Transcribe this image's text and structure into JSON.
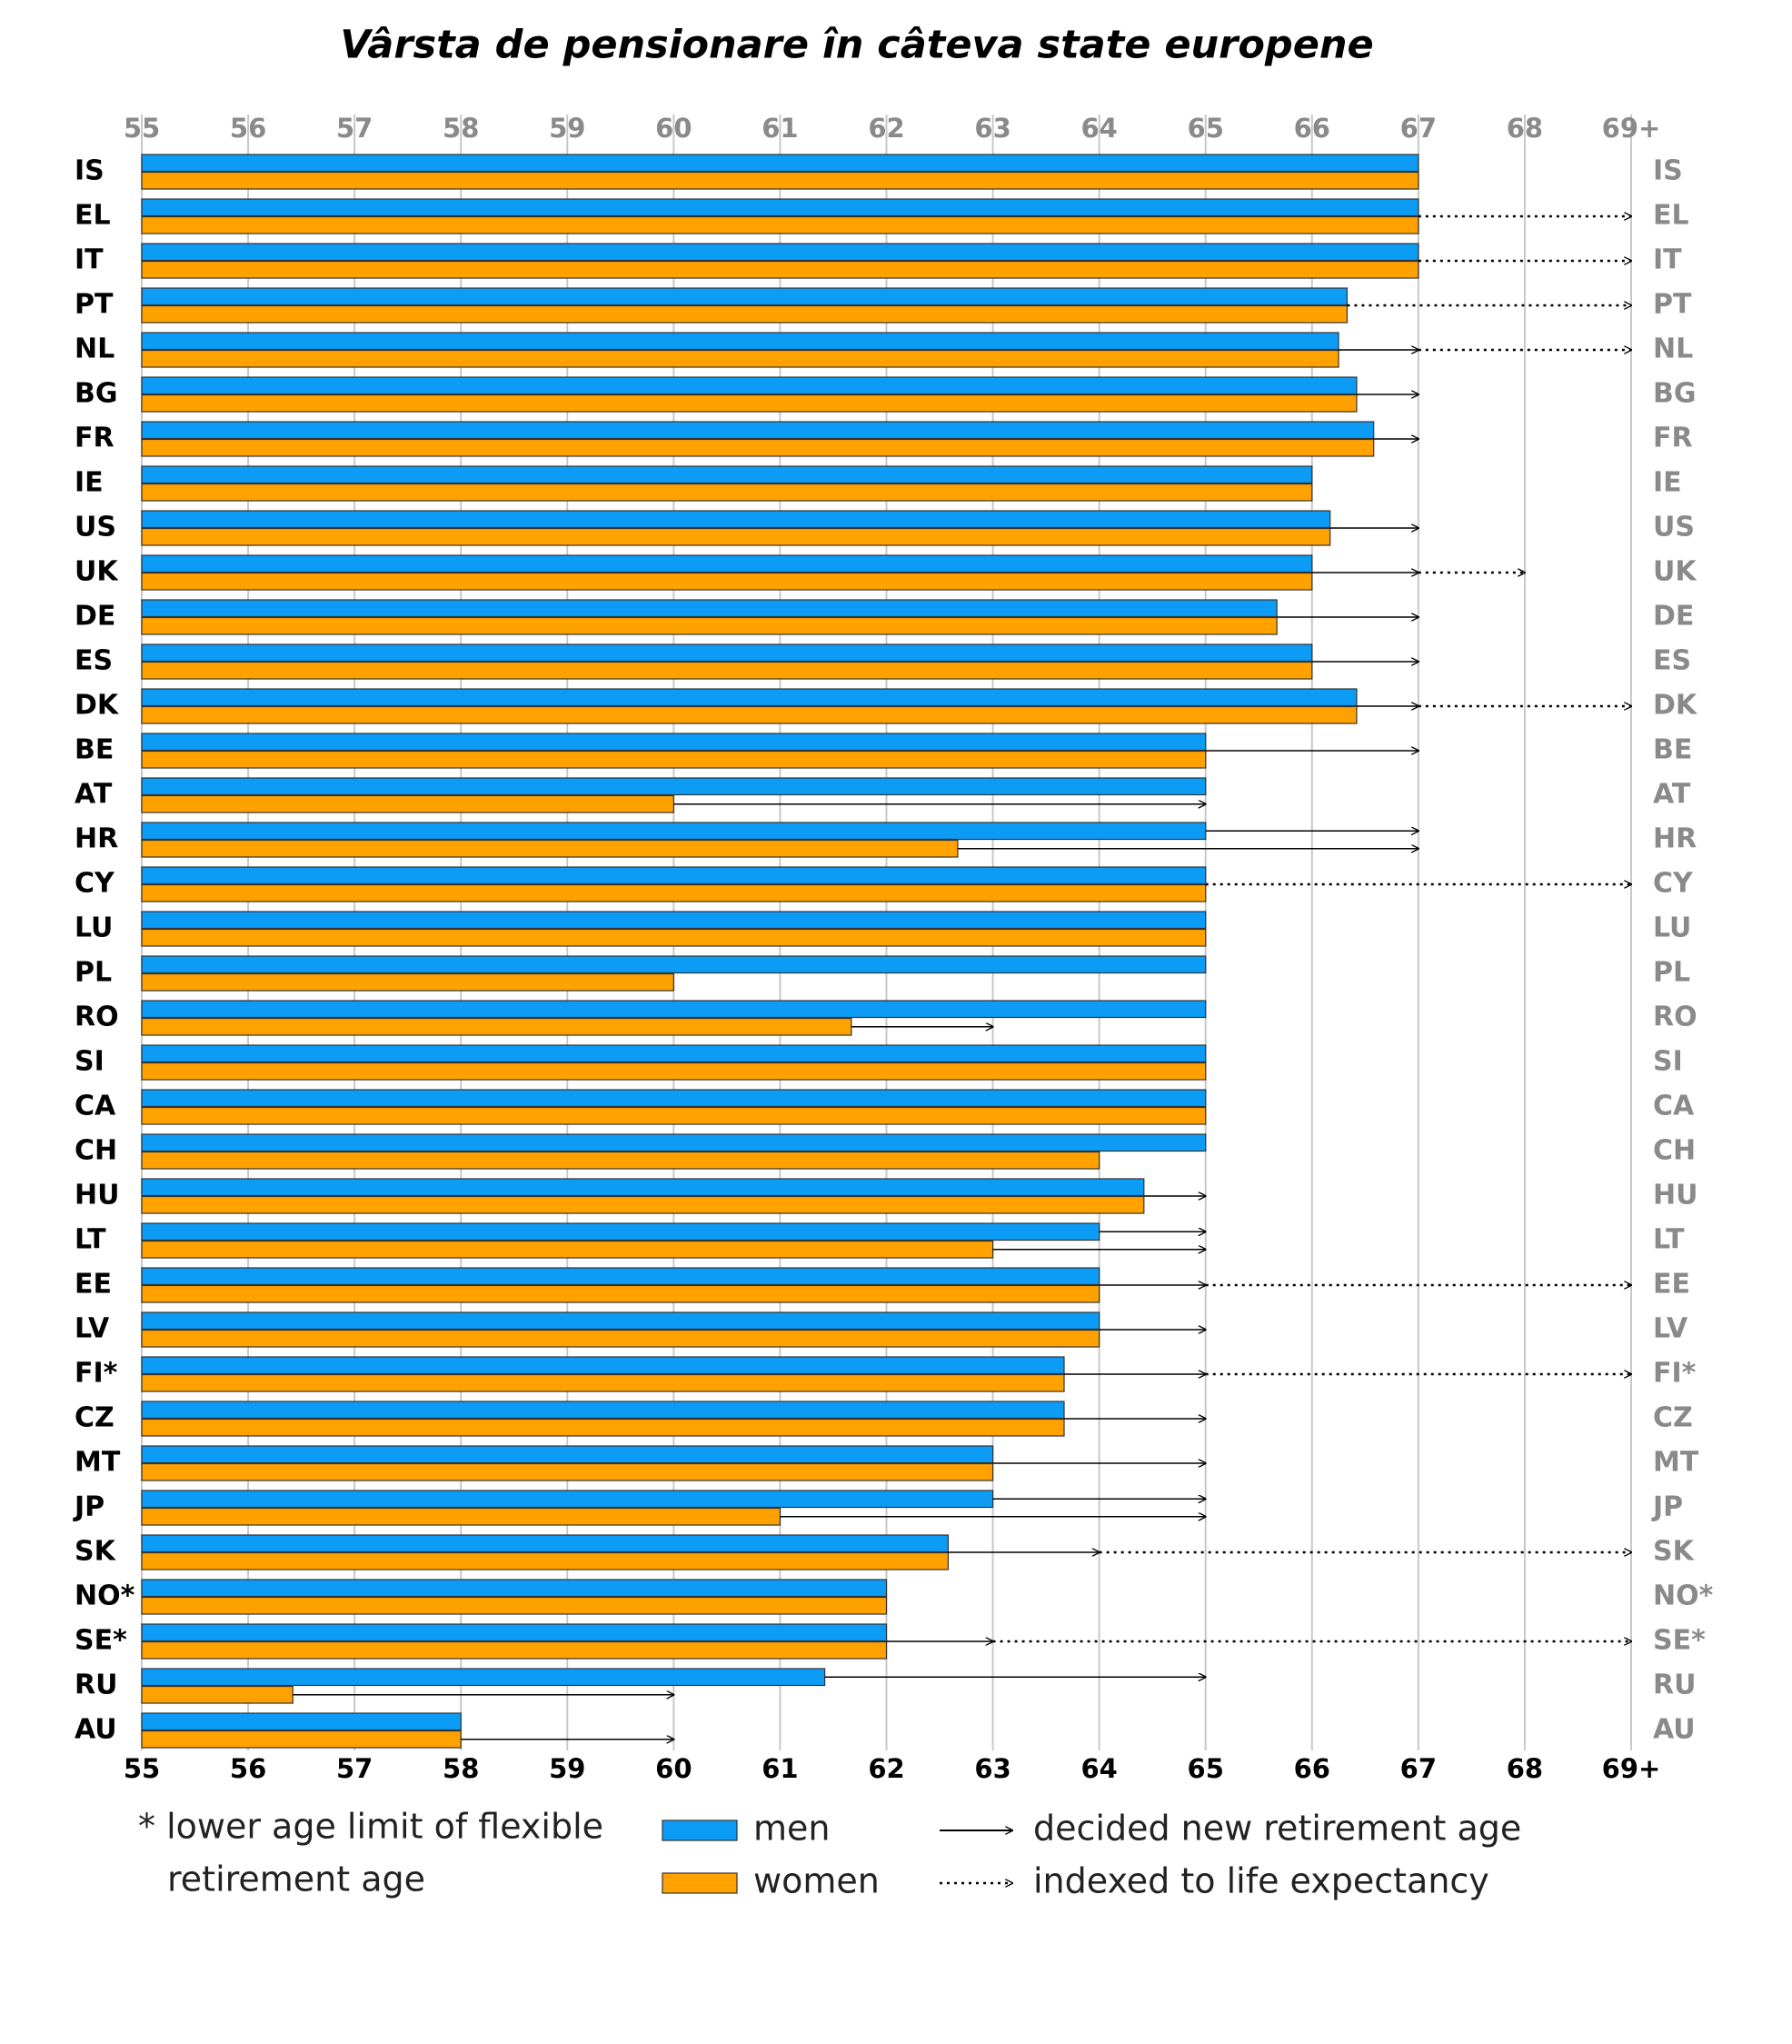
{
  "chart_data": {
    "type": "grouped-hbar",
    "title": "Vârsta de pensionare în câteva state europene",
    "categories": [
      "IS",
      "EL",
      "IT",
      "PT",
      "NL",
      "BG",
      "FR",
      "IE",
      "US",
      "UK",
      "DE",
      "ES",
      "DK",
      "BE",
      "AT",
      "HR",
      "CY",
      "LU",
      "PL",
      "RO",
      "SI",
      "CA",
      "CH",
      "HU",
      "LT",
      "EE",
      "LV",
      "FI*",
      "CZ",
      "MT",
      "JP",
      "SK",
      "NO*",
      "SE*",
      "RU",
      "AU"
    ],
    "series": [
      {
        "name": "men",
        "color": "#0d9cf5",
        "values": [
          67,
          67,
          67,
          66.33,
          66.25,
          66.42,
          66.58,
          66,
          66.17,
          66,
          65.67,
          66,
          66.42,
          65,
          65,
          65,
          65,
          65,
          65,
          65,
          65,
          65,
          65,
          64.42,
          64,
          64,
          64,
          63.67,
          63.67,
          63,
          63,
          62.58,
          62,
          62,
          61.42,
          58
        ],
        "decided": [
          null,
          null,
          null,
          null,
          67,
          67,
          67,
          null,
          67,
          67,
          67,
          67,
          67,
          67,
          null,
          67,
          null,
          null,
          null,
          null,
          null,
          null,
          null,
          65,
          65,
          65,
          65,
          65,
          65,
          65,
          65,
          64,
          null,
          63,
          65,
          null
        ]
      },
      {
        "name": "women",
        "color": "#ffa200",
        "values": [
          67,
          67,
          67,
          66.33,
          66.25,
          66.42,
          66.58,
          66,
          66.17,
          66,
          65.67,
          66,
          66.42,
          65,
          60,
          62.67,
          65,
          65,
          60,
          61.67,
          65,
          65,
          64,
          64.42,
          63,
          64,
          64,
          63.67,
          63.67,
          63,
          61,
          62.58,
          62,
          62,
          56.42,
          58
        ],
        "decided": [
          null,
          null,
          null,
          null,
          67,
          67,
          67,
          null,
          67,
          67,
          67,
          67,
          67,
          67,
          65,
          67,
          null,
          null,
          null,
          63,
          null,
          null,
          null,
          65,
          65,
          65,
          65,
          65,
          65,
          65,
          65,
          64,
          null,
          63,
          60,
          60
        ]
      }
    ],
    "indexed": [
      null,
      69,
      69,
      69,
      69,
      null,
      null,
      null,
      null,
      68,
      null,
      null,
      69,
      null,
      null,
      null,
      69,
      null,
      null,
      null,
      null,
      null,
      null,
      null,
      null,
      69,
      null,
      69,
      null,
      null,
      null,
      69,
      null,
      69,
      null,
      null
    ],
    "xlim": [
      55,
      69
    ],
    "xticks": [
      55,
      56,
      57,
      58,
      59,
      60,
      61,
      62,
      63,
      64,
      65,
      66,
      67,
      68,
      {
        "value": 69,
        "label": "69+"
      }
    ],
    "grid": true,
    "note": [
      "* lower age limit of flexible",
      "retirement age"
    ],
    "arrow_legend": [
      "decided new retirement age",
      "indexed to life expectancy"
    ]
  }
}
